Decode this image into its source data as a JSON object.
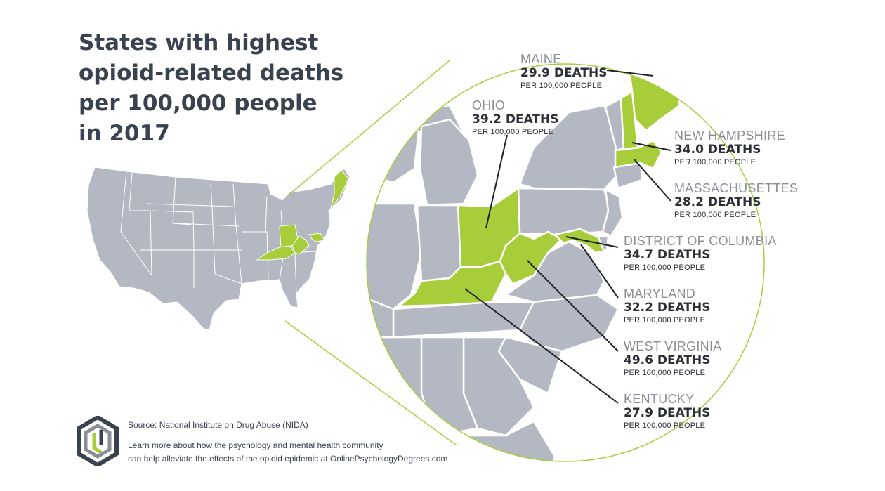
{
  "title": {
    "lines": [
      "States with highest",
      "opioid-related deaths",
      "per 100,000 people",
      "in 2017"
    ]
  },
  "states": [
    {
      "name": "MAINE",
      "value": "29.9 DEATHS",
      "unit": "PER 100,000 PEOPLE"
    },
    {
      "name": "OHIO",
      "value": "39.2 DEATHS",
      "unit": "PER 100,000 PEOPLE"
    },
    {
      "name": "NEW HAMPSHIRE",
      "value": "34.0 DEATHS",
      "unit": "PER 100,000 PEOPLE"
    },
    {
      "name": "MASSACHUSETTES",
      "value": "28.2 DEATHS",
      "unit": "PER 100,000 PEOPLE"
    },
    {
      "name": "DISTRICT OF COLUMBIA",
      "value": "34.7 DEATHS",
      "unit": "PER 100,000 PEOPLE"
    },
    {
      "name": "MARYLAND",
      "value": "32.2 DEATHS",
      "unit": "PER 100,000 PEOPLE"
    },
    {
      "name": "WEST VIRGINIA",
      "value": "49.6 DEATHS",
      "unit": "PER 100,000 PEOPLE"
    },
    {
      "name": "KENTUCKY",
      "value": "27.9 DEATHS",
      "unit": "PER 100,000 PEOPLE"
    }
  ],
  "footer": {
    "source": "Source: National Institute on Drug Abuse (NIDA)",
    "more_lines": [
      "Learn more about how the psychology and mental health community",
      "can help alleviate the effects of the opioid epidemic at OnlinePsychologyDegrees.com"
    ]
  },
  "colors": {
    "highlight": "#a7cd3a",
    "land": "#b3b8c3",
    "border": "#ffffff",
    "title": "#3a4250",
    "circle": "#a7cd3a"
  },
  "icons": [
    "logo-icon"
  ]
}
